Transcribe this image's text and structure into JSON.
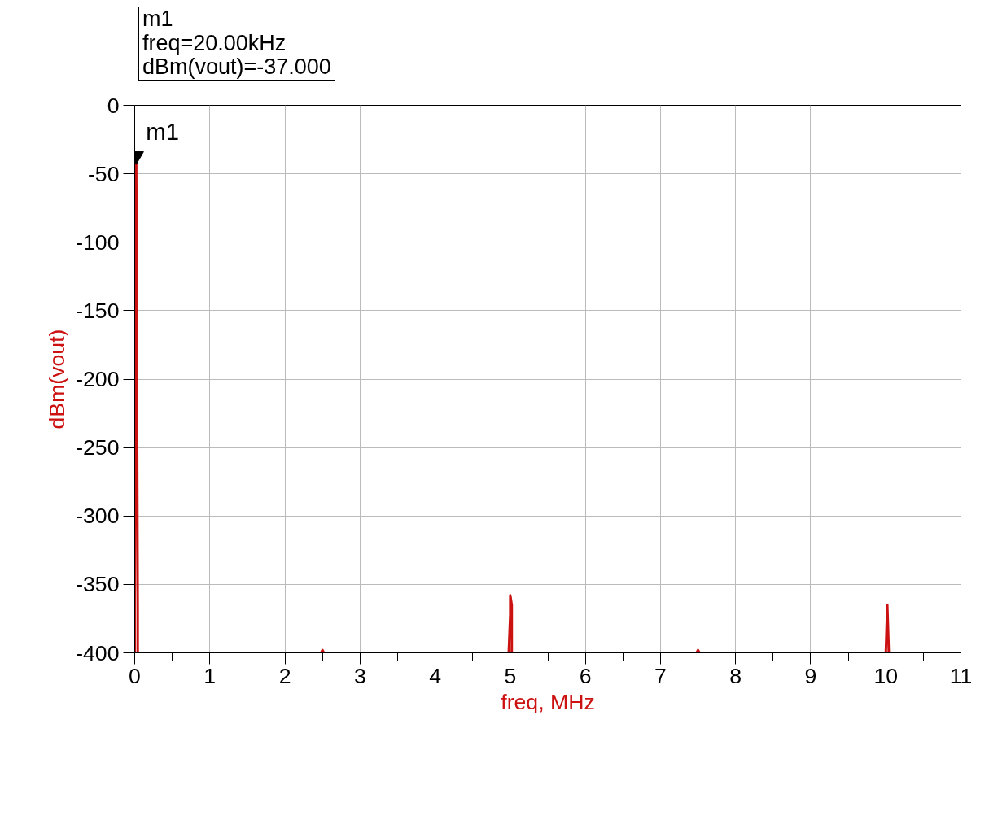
{
  "chart_data": {
    "type": "line",
    "xlabel": "freq, MHz",
    "ylabel": "dBm(vout)",
    "annotations": [
      "m1\nfreq=20.00kHz\ndBm(vout)=-37.000",
      {
        "text": "m1",
        "x": 0.02,
        "y": -37
      }
    ],
    "series": [
      {
        "color": "#cc1111",
        "x": [
          0.0,
          0.0,
          0.02,
          0.04,
          0.04,
          0.06,
          2.48,
          2.5,
          2.52,
          4.98,
          5.0,
          5.0,
          5.02,
          5.02,
          5.04,
          7.48,
          7.5,
          7.52,
          10.0,
          10.02,
          10.04
        ],
        "values": [
          -400,
          -365,
          -37,
          -370,
          -400,
          -400,
          -400,
          -398,
          -400,
          -400,
          -372,
          -358,
          -365,
          -400,
          -400,
          -400,
          -398,
          -400,
          -400,
          -365,
          -400
        ]
      }
    ],
    "xlim": [
      0,
      11
    ],
    "ylim": [
      -400,
      0
    ],
    "xticks": [
      0,
      1,
      2,
      3,
      4,
      5,
      6,
      7,
      8,
      9,
      10,
      11,
      {
        "value": 0.5,
        "label": null
      },
      {
        "value": 1.5,
        "label": null
      },
      {
        "value": 2.5,
        "label": null
      },
      {
        "value": 3.5,
        "label": null
      },
      {
        "value": 4.5,
        "label": null
      },
      {
        "value": 5.5,
        "label": null
      },
      {
        "value": 6.5,
        "label": null
      },
      {
        "value": 7.5,
        "label": null
      },
      {
        "value": 8.5,
        "label": null
      },
      {
        "value": 9.5,
        "label": null
      },
      {
        "value": 10.5,
        "label": null
      }
    ],
    "yticks": [
      0,
      -50,
      -100,
      -150,
      -200,
      -250,
      -300,
      -350,
      -400
    ],
    "grid": true,
    "marker": "none",
    "line_style": "solid"
  }
}
